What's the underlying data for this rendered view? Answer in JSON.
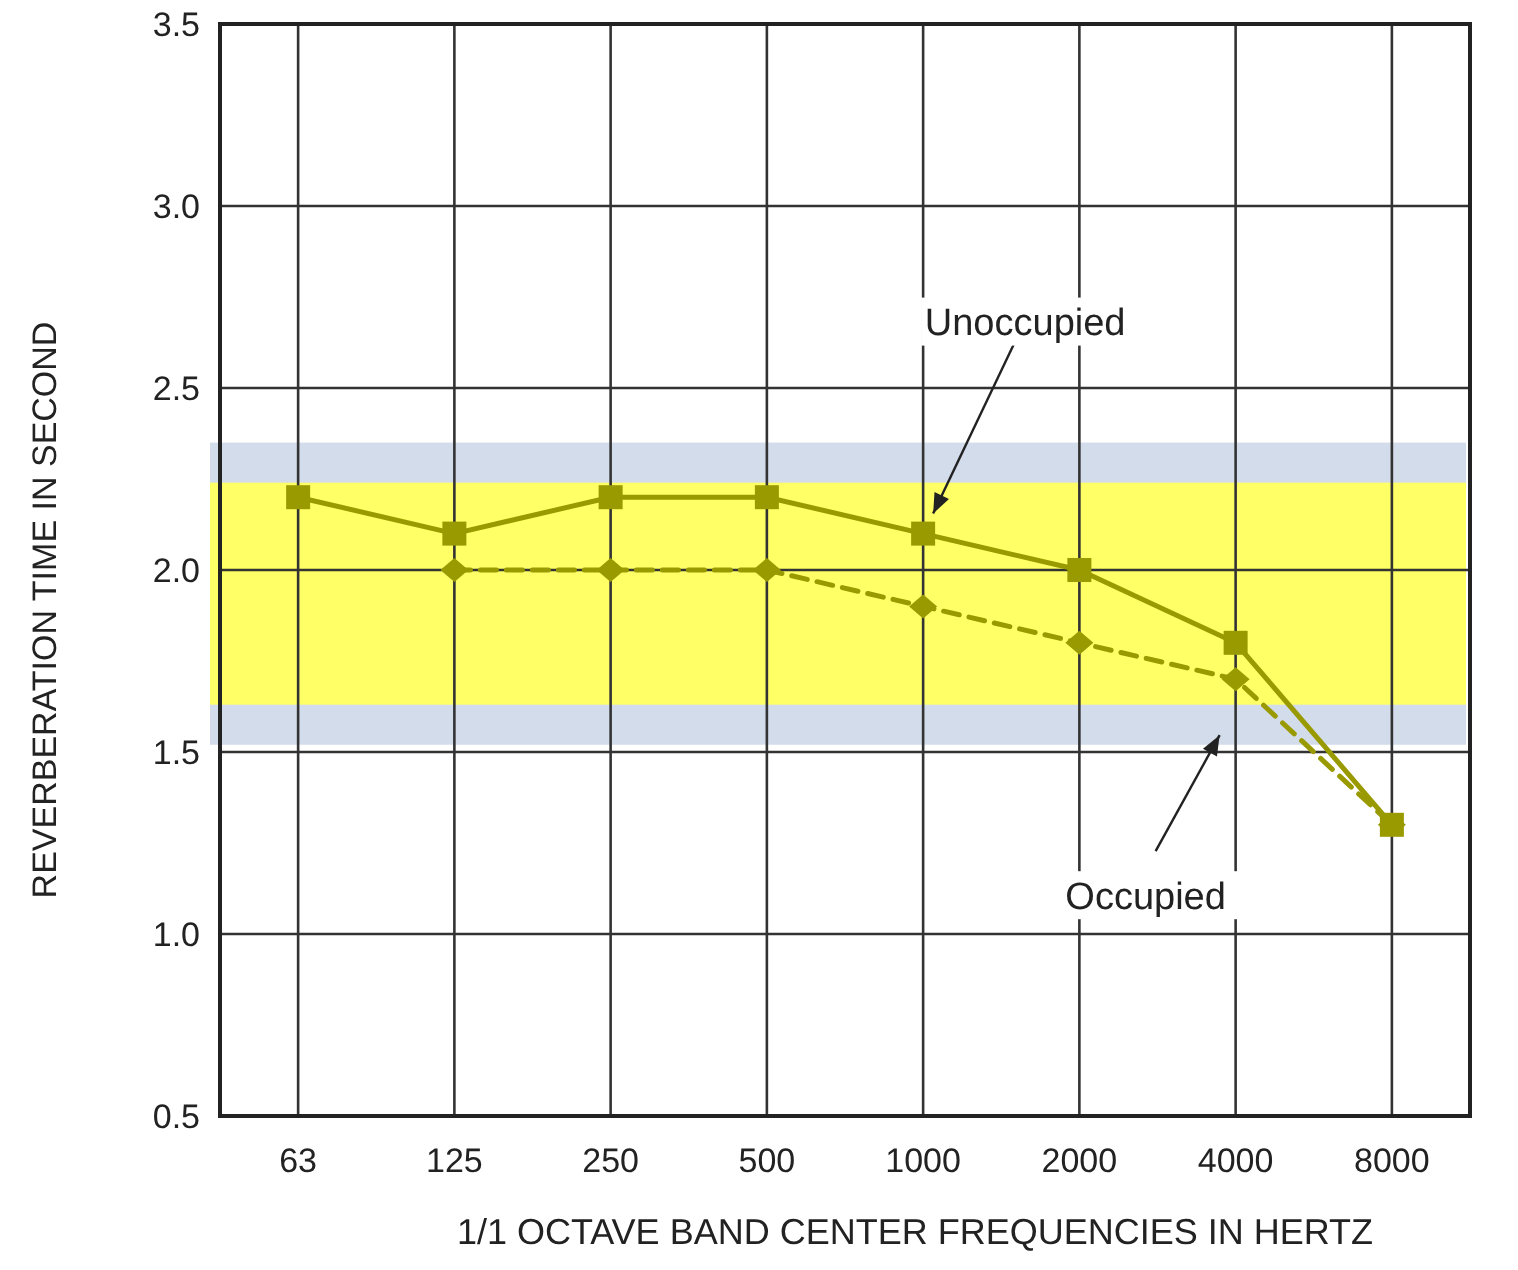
{
  "chart_data": {
    "type": "line",
    "xlabel": "1/1 OCTAVE BAND CENTER FREQUENCIES IN HERTZ",
    "ylabel": "REVERBERATION TIME IN SECOND",
    "categories": [
      "63",
      "125",
      "250",
      "500",
      "1000",
      "2000",
      "4000",
      "8000"
    ],
    "series": [
      {
        "name": "Unoccupied",
        "color": "#999900",
        "values": [
          2.2,
          2.1,
          2.2,
          2.2,
          2.1,
          2.0,
          1.8,
          1.3
        ],
        "marker": "square",
        "line_style": "solid"
      },
      {
        "name": "Occupied",
        "color": "#999900",
        "values": [
          null,
          2.0,
          2.0,
          2.0,
          1.9,
          1.8,
          1.7,
          1.3
        ],
        "marker": "diamond",
        "line_style": "dashed"
      }
    ],
    "ylim": [
      0.5,
      3.5
    ],
    "yticks": [
      {
        "value": 0.5,
        "label": "0.5"
      },
      {
        "value": 1,
        "label": "1.0"
      },
      {
        "value": 1.5,
        "label": "1.5"
      },
      {
        "value": 2,
        "label": "2.0"
      },
      {
        "value": 2.5,
        "label": "2.5"
      },
      {
        "value": 3,
        "label": "3.0"
      },
      {
        "value": 3.5,
        "label": "3.5"
      }
    ],
    "bands": [
      {
        "axis": "y",
        "from": 1.52,
        "to": 2.35,
        "color": "#d3dcea"
      },
      {
        "axis": "y",
        "from": 1.63,
        "to": 2.24,
        "color": "#ffff66"
      }
    ],
    "grid": true
  }
}
